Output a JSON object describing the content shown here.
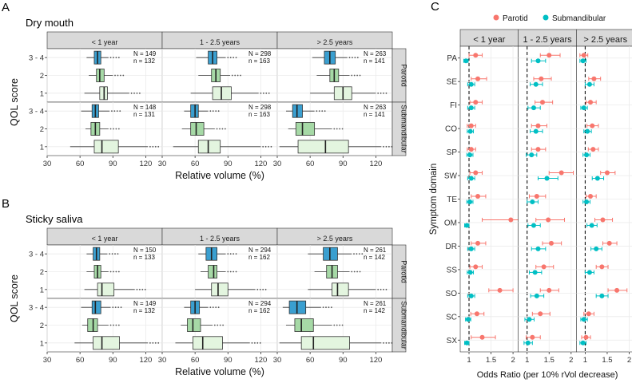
{
  "panel_letters": {
    "a": "A",
    "b": "B",
    "c": "C"
  },
  "colors": {
    "strip": "#d9d9d9",
    "grid_major": "#ebebeb",
    "box_q34": "#3a9fd0",
    "box_q2": "#a6d9a6",
    "box_q1": "#e3f5df",
    "parotid": "#f8766d",
    "submandibular": "#00bfc4"
  },
  "chart_data": [
    {
      "type": "boxplot",
      "id": "A",
      "title": "Dry mouth",
      "xlabel": "Relative volume (%)",
      "ylabel": "QOL score",
      "xlim": [
        30,
        135
      ],
      "xticks": [
        "30",
        "60",
        "90",
        "120"
      ],
      "categories": [
        "3 - 4",
        "2",
        "1"
      ],
      "col_facets": [
        "< 1 year",
        "1 - 2.5 years",
        "> 2.5 years"
      ],
      "row_facets": [
        "Parotid",
        "Submandibular"
      ],
      "annotations": [
        [
          "N = 149\nn = 132",
          "N = 298\nn = 163",
          "N = 263\nn = 141"
        ],
        [
          "N = 148\nn = 131",
          "N = 298\nn = 163",
          "N = 263\nn = 141"
        ]
      ],
      "boxes": [
        [
          [
            [
              66,
              73,
              76,
              79,
              86
            ],
            [
              68,
              75,
              78,
              82,
              90
            ],
            [
              64,
              78,
              82,
              85,
              105
            ]
          ],
          [
            [
              61,
              72,
              76,
              80,
              88
            ],
            [
              63,
              75,
              79,
              83,
              92
            ],
            [
              56,
              76,
              84,
              93,
              118
            ]
          ],
          [
            [
              62,
              73,
              78,
              83,
              94
            ],
            [
              66,
              78,
              82,
              86,
              96
            ],
            [
              60,
              82,
              90,
              98,
              120
            ]
          ]
        ],
        [
          [
            [
              61,
              71,
              74,
              77,
              87
            ],
            [
              65,
              70,
              74,
              78,
              86
            ],
            [
              51,
              73,
              80,
              95,
              122
            ]
          ],
          [
            [
              50,
              56,
              60,
              63,
              72
            ],
            [
              48,
              56,
              61,
              68,
              78
            ],
            [
              40,
              63,
              72,
              83,
              120
            ]
          ],
          [
            [
              38,
              44,
              48,
              53,
              64
            ],
            [
              40,
              47,
              53,
              64,
              80
            ],
            [
              32,
              49,
              74,
              95,
              125
            ]
          ]
        ]
      ]
    },
    {
      "type": "boxplot",
      "id": "B",
      "title": "Sticky saliva",
      "xlabel": "Relative volume (%)",
      "ylabel": "QOL score",
      "xlim": [
        30,
        135
      ],
      "xticks": [
        "30",
        "60",
        "90",
        "120"
      ],
      "categories": [
        "3 - 4",
        "2",
        "1"
      ],
      "col_facets": [
        "< 1 year",
        "1 - 2.5 years",
        "> 2.5 years"
      ],
      "row_facets": [
        "Parotid",
        "Submandibular"
      ],
      "annotations": [
        [
          "N = 150\nn = 133",
          "N = 294\nn = 162",
          "N = 261\nn = 142"
        ],
        [
          "N = 149\nn = 132",
          "N = 294\nn = 162",
          "N = 261\nn = 142"
        ]
      ],
      "boxes": [
        [
          [
            [
              66,
              72,
              75,
              78,
              85
            ],
            [
              66,
              73,
              76,
              79,
              86
            ],
            [
              64,
              76,
              80,
              91,
              110
            ]
          ],
          [
            [
              63,
              70,
              75,
              80,
              88
            ],
            [
              65,
              72,
              77,
              80,
              88
            ],
            [
              60,
              75,
              81,
              90,
              115
            ]
          ],
          [
            [
              58,
              72,
              78,
              85,
              98
            ],
            [
              64,
              75,
              80,
              85,
              96
            ],
            [
              58,
              80,
              85,
              95,
              120
            ]
          ]
        ],
        [
          [
            [
              61,
              71,
              74,
              79,
              88
            ],
            [
              62,
              67,
              72,
              76,
              86
            ],
            [
              55,
              72,
              80,
              96,
              122
            ]
          ],
          [
            [
              50,
              56,
              60,
              64,
              72
            ],
            [
              47,
              53,
              58,
              65,
              76
            ],
            [
              42,
              58,
              67,
              85,
              110
            ]
          ],
          [
            [
              35,
              41,
              48,
              56,
              70
            ],
            [
              38,
              46,
              52,
              63,
              80
            ],
            [
              32,
              52,
              63,
              96,
              125
            ]
          ]
        ]
      ]
    },
    {
      "type": "forest",
      "id": "C",
      "xlabel": "Odds Ratio (per 10% rVol decrease)",
      "ylabel": "Symptom domain",
      "legend_position": "top",
      "xlim": [
        0.8,
        2.12
      ],
      "xticks": [
        "1",
        "1.5",
        "2"
      ],
      "reference_line": 1,
      "col_facets": [
        "< 1 year",
        "1 - 2.5 years",
        "> 2.5 years"
      ],
      "categories": [
        "PA",
        "SE",
        "FI",
        "CO",
        "SP",
        "SW",
        "TE",
        "OM",
        "DR",
        "SS",
        "SO",
        "SC",
        "SX"
      ],
      "series": [
        {
          "name": "Parotid",
          "values": [
            [
              [
                1.15,
                1.0,
                1.3
              ],
              [
                1.5,
                1.3,
                1.75
              ],
              [
                0.97,
                0.88,
                1.06
              ]
            ],
            [
              [
                1.2,
                1.05,
                1.4
              ],
              [
                1.32,
                1.15,
                1.55
              ],
              [
                1.2,
                1.08,
                1.35
              ]
            ],
            [
              [
                1.15,
                1.02,
                1.3
              ],
              [
                1.35,
                1.18,
                1.58
              ],
              [
                1.12,
                1.02,
                1.25
              ]
            ],
            [
              [
                1.05,
                0.96,
                1.15
              ],
              [
                1.25,
                1.1,
                1.45
              ],
              [
                1.16,
                1.04,
                1.3
              ]
            ],
            [
              [
                1.05,
                0.96,
                1.15
              ],
              [
                1.25,
                1.1,
                1.42
              ],
              [
                1.18,
                1.07,
                1.3
              ]
            ],
            [
              [
                1.15,
                1.02,
                1.3
              ],
              [
                1.78,
                1.5,
                2.05
              ],
              [
                1.5,
                1.35,
                1.68
              ]
            ],
            [
              [
                1.2,
                1.05,
                1.38
              ],
              [
                1.22,
                1.05,
                1.42
              ],
              [
                1.12,
                1.02,
                1.25
              ]
            ],
            [
              [
                1.95,
                1.3,
                2.6
              ],
              [
                1.48,
                1.2,
                1.85
              ],
              [
                1.4,
                1.22,
                1.62
              ]
            ],
            [
              [
                1.2,
                1.05,
                1.38
              ],
              [
                1.55,
                1.35,
                1.78
              ],
              [
                1.55,
                1.4,
                1.72
              ]
            ],
            [
              [
                1.15,
                1.02,
                1.3
              ],
              [
                1.38,
                1.2,
                1.6
              ],
              [
                1.38,
                1.25,
                1.52
              ]
            ],
            [
              [
                1.7,
                1.45,
                2.0
              ],
              [
                1.5,
                1.3,
                1.72
              ],
              [
                1.72,
                1.52,
                1.95
              ]
            ],
            [
              [
                1.18,
                1.04,
                1.34
              ],
              [
                1.3,
                1.12,
                1.52
              ],
              [
                1.08,
                0.97,
                1.2
              ]
            ],
            [
              [
                1.3,
                1.05,
                1.6
              ],
              [
                1.12,
                0.98,
                1.3
              ],
              [
                1.02,
                0.92,
                1.12
              ]
            ]
          ]
        },
        {
          "name": "Submandibular",
          "values": [
            [
              [
                0.93,
                0.88,
                0.98
              ],
              [
                1.25,
                1.1,
                1.42
              ],
              [
                0.95,
                0.88,
                1.02
              ]
            ],
            [
              [
                1.05,
                0.97,
                1.13
              ],
              [
                1.2,
                1.07,
                1.35
              ],
              [
                1.1,
                1.0,
                1.2
              ]
            ],
            [
              [
                1.05,
                0.97,
                1.13
              ],
              [
                1.15,
                1.02,
                1.3
              ],
              [
                0.97,
                0.9,
                1.05
              ]
            ],
            [
              [
                1.03,
                0.96,
                1.1
              ],
              [
                1.2,
                1.07,
                1.35
              ],
              [
                1.05,
                0.97,
                1.14
              ]
            ],
            [
              [
                1.02,
                0.95,
                1.09
              ],
              [
                1.1,
                0.98,
                1.22
              ],
              [
                1.03,
                0.95,
                1.11
              ]
            ],
            [
              [
                1.05,
                0.97,
                1.13
              ],
              [
                1.45,
                1.25,
                1.7
              ],
              [
                1.28,
                1.16,
                1.42
              ]
            ],
            [
              [
                1.02,
                0.95,
                1.09
              ],
              [
                1.12,
                1.0,
                1.25
              ],
              [
                1.03,
                0.95,
                1.11
              ]
            ],
            [
              [
                0.95,
                0.9,
                1.0
              ],
              [
                1.15,
                1.02,
                1.3
              ],
              [
                1.15,
                1.04,
                1.27
              ]
            ],
            [
              [
                1.05,
                0.97,
                1.13
              ],
              [
                1.25,
                1.1,
                1.42
              ],
              [
                1.25,
                1.13,
                1.38
              ]
            ],
            [
              [
                1.03,
                0.96,
                1.1
              ],
              [
                1.18,
                1.05,
                1.33
              ],
              [
                1.1,
                1.0,
                1.2
              ]
            ],
            [
              [
                1.05,
                0.97,
                1.13
              ],
              [
                1.22,
                1.08,
                1.38
              ],
              [
                1.38,
                1.25,
                1.52
              ]
            ],
            [
              [
                0.98,
                0.92,
                1.04
              ],
              [
                1.05,
                0.95,
                1.16
              ],
              [
                0.97,
                0.9,
                1.05
              ]
            ],
            [
              [
                0.95,
                0.9,
                1.0
              ],
              [
                1.02,
                0.93,
                1.12
              ],
              [
                0.95,
                0.88,
                1.02
              ]
            ]
          ]
        }
      ]
    }
  ]
}
